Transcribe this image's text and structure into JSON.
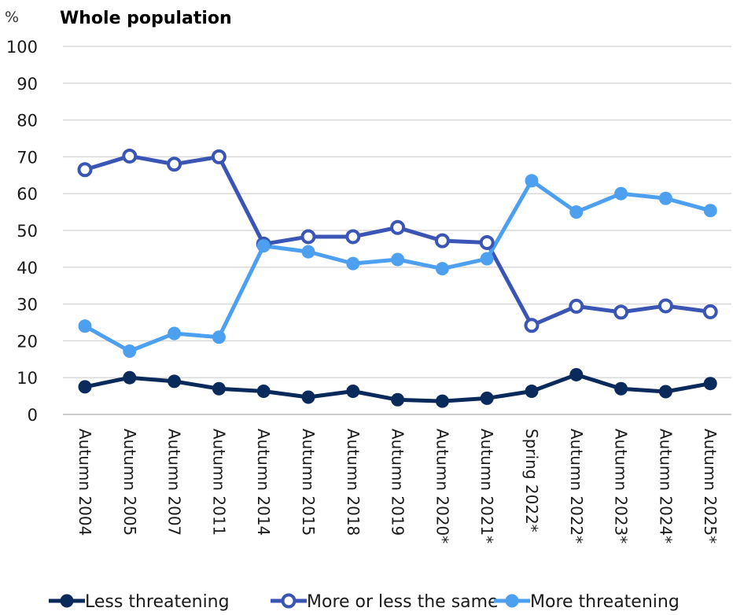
{
  "chart_data": {
    "type": "line",
    "title": "Whole population",
    "ylabel": "%",
    "ylim": [
      0,
      100
    ],
    "yticks": [
      0,
      10,
      20,
      30,
      40,
      50,
      60,
      70,
      80,
      90,
      100
    ],
    "grid": true,
    "legend_position": "bottom",
    "categories": [
      "Autumn 2004",
      "Autumn 2005",
      "Autumn 2007",
      "Autumn 2011",
      "Autumn 2014",
      "Autumn 2015",
      "Autumn 2018",
      "Autumn 2019",
      "Autumn 2020*",
      "Autumn 2021*",
      "Spring 2022*",
      "Autumn 2022*",
      "Autumn 2023*",
      "Autumn 2024*",
      "Autumn 2025*"
    ],
    "series": [
      {
        "name": "Less threatening",
        "color": "#0b2a5c",
        "marker": "filled",
        "values": [
          7.5,
          10,
          9,
          7,
          6.3,
          4.7,
          6.3,
          4,
          3.6,
          4.4,
          6.3,
          10.8,
          7,
          6.2,
          8.4
        ]
      },
      {
        "name": "More or less the same",
        "color": "#3a55b4",
        "marker": "hollow",
        "values": [
          66.5,
          70.2,
          68,
          70,
          46.3,
          48.3,
          48.3,
          50.8,
          47.2,
          46.7,
          24.2,
          29.4,
          27.8,
          29.5,
          27.9
        ]
      },
      {
        "name": "More threatening",
        "color": "#4d9fef",
        "marker": "filled",
        "values": [
          24,
          17.2,
          22,
          21,
          45.8,
          44.2,
          41,
          42.1,
          39.6,
          42.3,
          63.5,
          55,
          60,
          58.7,
          55.4
        ]
      }
    ]
  }
}
